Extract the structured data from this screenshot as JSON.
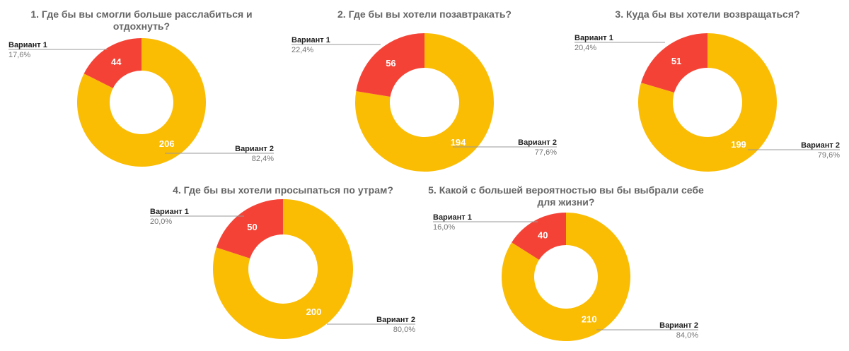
{
  "colors": {
    "variant1": "#f44336",
    "variant2": "#fbbc04",
    "title": "#666666"
  },
  "chart_data": [
    {
      "type": "pie",
      "donut": true,
      "title": [
        "1. Где бы вы смогли больше расслабиться и",
        "отдохнуть?"
      ],
      "slices": [
        {
          "label": "Вариант 1",
          "value": 44,
          "percent": "17,6%"
        },
        {
          "label": "Вариант 2",
          "value": 206,
          "percent": "82,4%"
        }
      ]
    },
    {
      "type": "pie",
      "donut": true,
      "title": [
        "2. Где бы вы хотели позавтракать?"
      ],
      "slices": [
        {
          "label": "Вариант 1",
          "value": 56,
          "percent": "22,4%"
        },
        {
          "label": "Вариант 2",
          "value": 194,
          "percent": "77,6%"
        }
      ]
    },
    {
      "type": "pie",
      "donut": true,
      "title": [
        "3. Куда бы вы хотели возвращаться?"
      ],
      "slices": [
        {
          "label": "Вариант 1",
          "value": 51,
          "percent": "20,4%"
        },
        {
          "label": "Вариант 2",
          "value": 199,
          "percent": "79,6%"
        }
      ]
    },
    {
      "type": "pie",
      "donut": true,
      "title": [
        "4. Где бы вы хотели просыпаться по утрам?"
      ],
      "slices": [
        {
          "label": "Вариант 1",
          "value": 50,
          "percent": "20,0%"
        },
        {
          "label": "Вариант 2",
          "value": 200,
          "percent": "80,0%"
        }
      ]
    },
    {
      "type": "pie",
      "donut": true,
      "title": [
        "5. Какой с большей вероятностью вы бы выбрали себе",
        "для жизни?"
      ],
      "slices": [
        {
          "label": "Вариант 1",
          "value": 40,
          "percent": "16,0%"
        },
        {
          "label": "Вариант 2",
          "value": 210,
          "percent": "84,0%"
        }
      ]
    }
  ]
}
